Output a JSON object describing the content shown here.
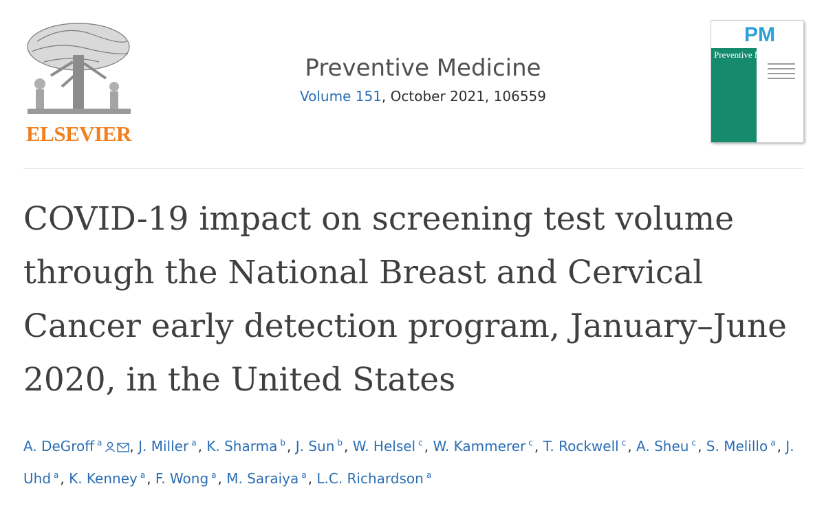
{
  "publisher": {
    "name": "ELSEVIER"
  },
  "journal": {
    "name": "Preventive Medicine",
    "volume_link": "Volume 151",
    "issue_rest": ", October 2021, 106559"
  },
  "cover": {
    "monogram": "PM",
    "title": "Preventive Medicine"
  },
  "article": {
    "title": "COVID-19 impact on screening test volume through the National Breast and Cervical Cancer early detection program, January–June 2020, in the United States"
  },
  "authors": [
    {
      "name": "A. DeGroff",
      "affil": "a",
      "icons": [
        "person-icon",
        "envelope-icon"
      ]
    },
    {
      "name": "J. Miller",
      "affil": "a"
    },
    {
      "name": "K. Sharma",
      "affil": "b"
    },
    {
      "name": "J. Sun",
      "affil": "b"
    },
    {
      "name": "W. Helsel",
      "affil": "c"
    },
    {
      "name": "W. Kammerer",
      "affil": "c"
    },
    {
      "name": "T. Rockwell",
      "affil": "c"
    },
    {
      "name": "A. Sheu",
      "affil": "c"
    },
    {
      "name": "S. Melillo",
      "affil": "a"
    },
    {
      "name": "J. Uhd",
      "affil": "a"
    },
    {
      "name": "K. Kenney",
      "affil": "a"
    },
    {
      "name": "F. Wong",
      "affil": "a"
    },
    {
      "name": "M. Saraiya",
      "affil": "a"
    },
    {
      "name": "L.C. Richardson",
      "affil": "a"
    }
  ],
  "colors": {
    "link": "#2a6db3",
    "publisher_orange": "#f07f1f",
    "cover_green": "#168a6d"
  }
}
